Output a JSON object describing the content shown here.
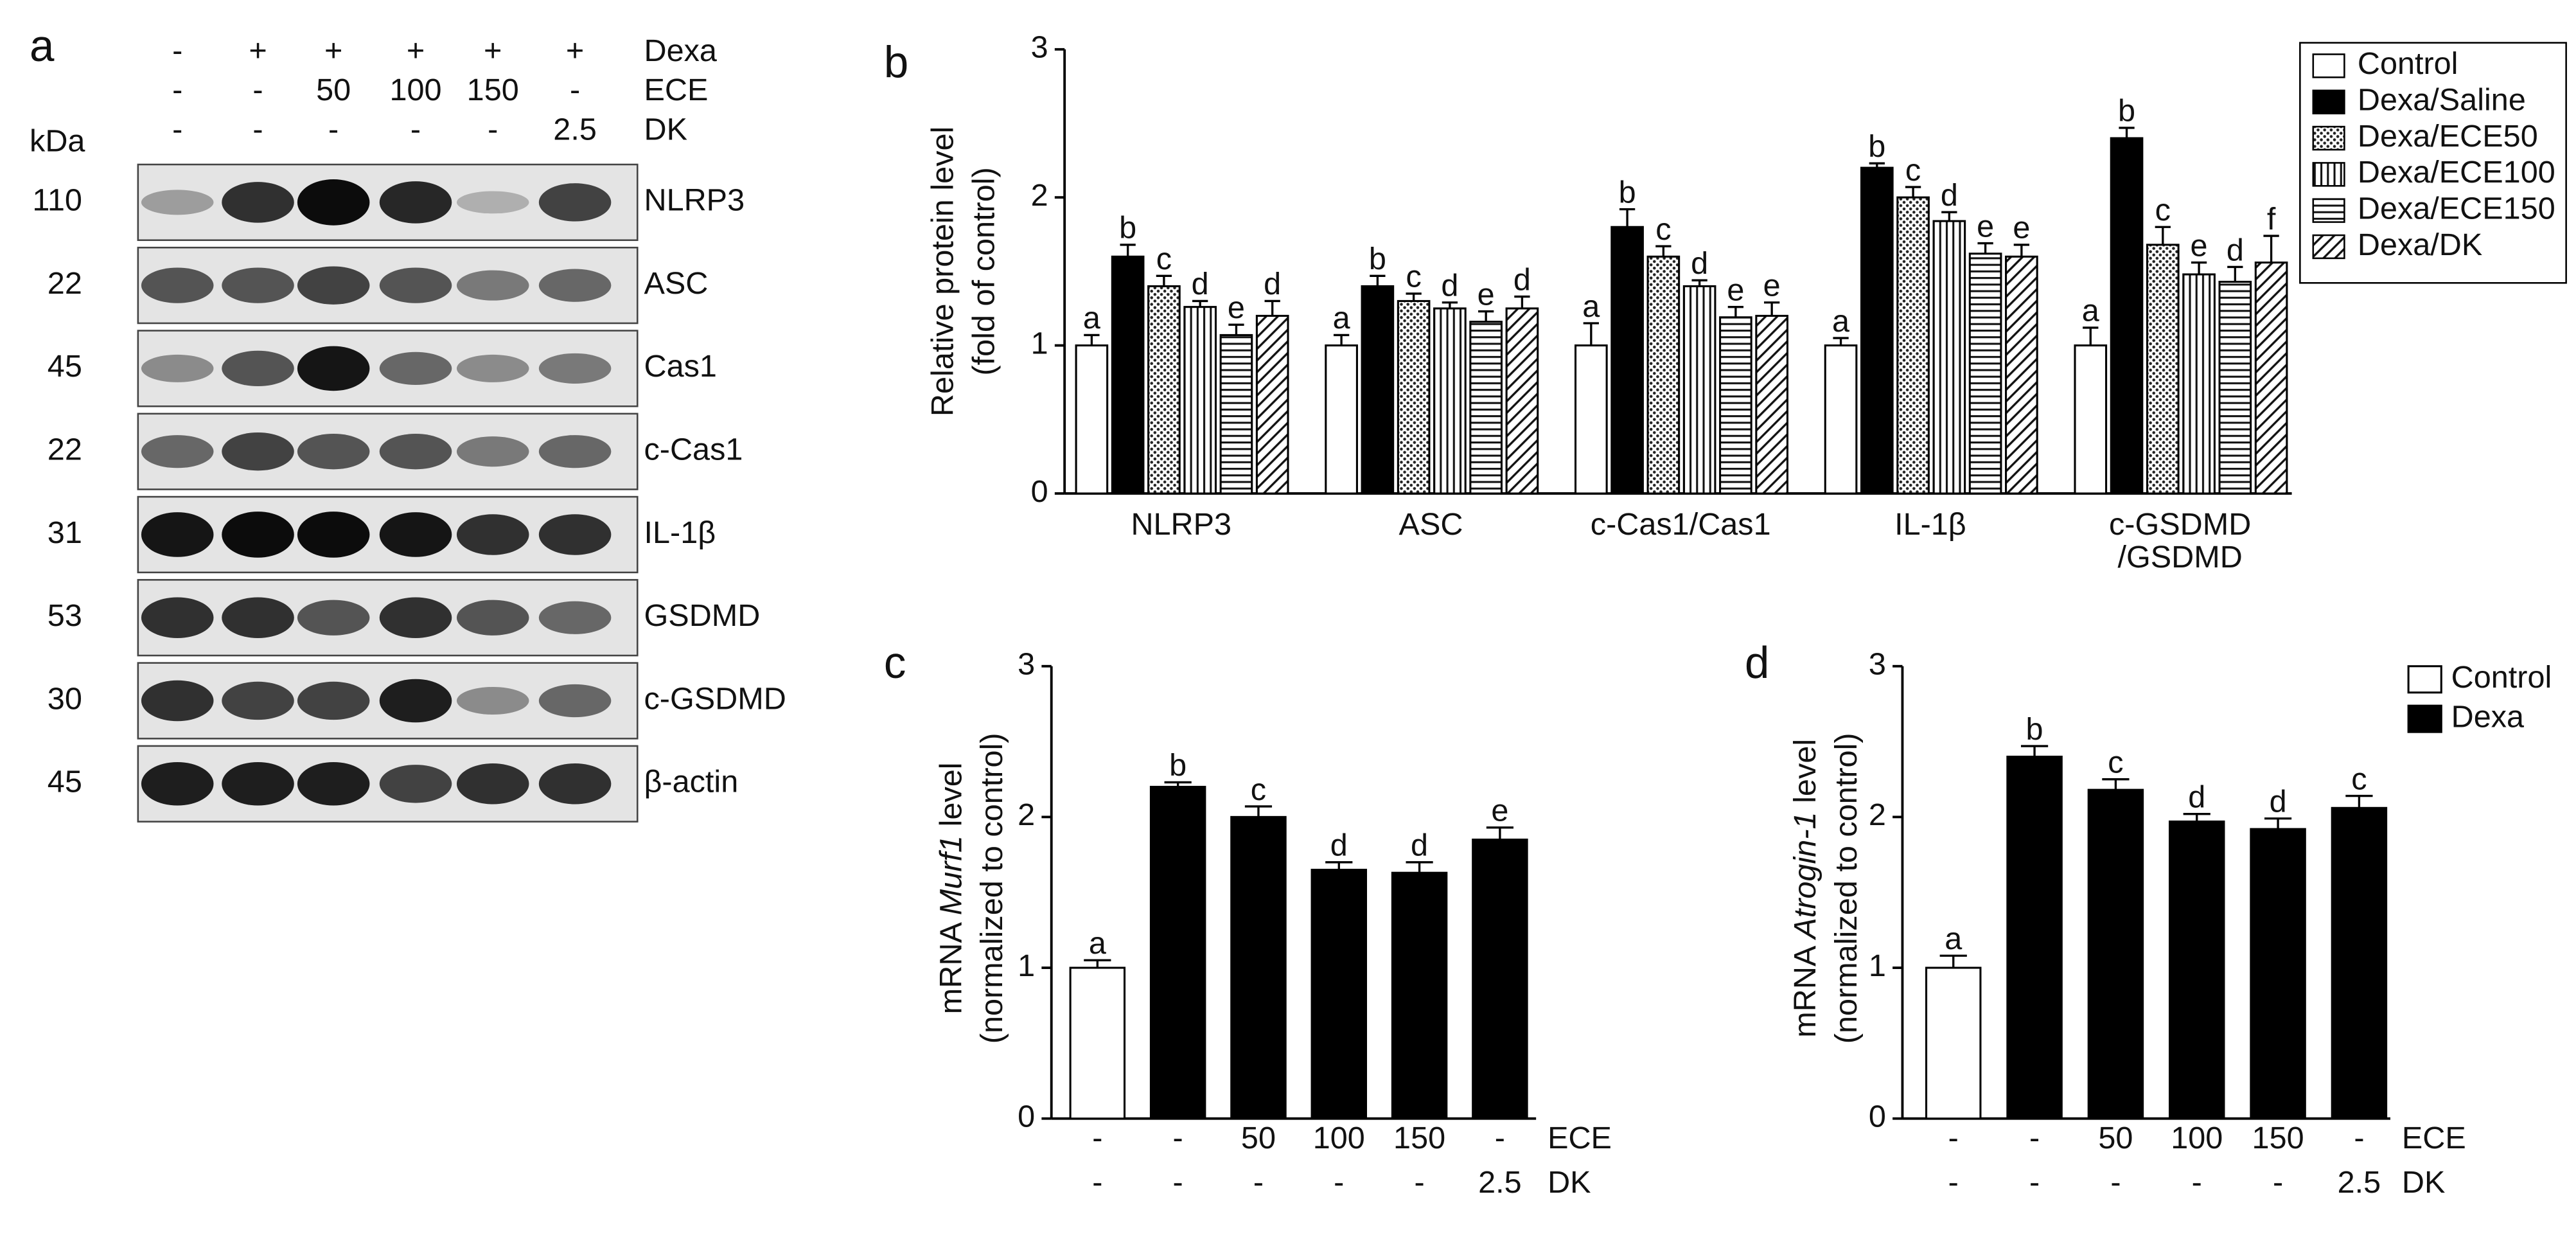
{
  "blot": {
    "panel": "a",
    "kda_label": "kDa",
    "treatments": [
      {
        "name": "Dexa",
        "values": [
          "-",
          "+",
          "+",
          "+",
          "+",
          "+"
        ]
      },
      {
        "name": "ECE",
        "values": [
          "-",
          "-",
          "50",
          "100",
          "150",
          "-"
        ]
      },
      {
        "name": "DK",
        "values": [
          "-",
          "-",
          "-",
          "-",
          "-",
          "2.5"
        ]
      }
    ],
    "bands": [
      {
        "name": "NLRP3",
        "kda": "110"
      },
      {
        "name": "ASC",
        "kda": "22"
      },
      {
        "name": "Cas1",
        "kda": "45"
      },
      {
        "name": "c-Cas1",
        "kda": "22"
      },
      {
        "name": "IL-1β",
        "kda": "31"
      },
      {
        "name": "GSDMD",
        "kda": "53"
      },
      {
        "name": "c-GSDMD",
        "kda": "30"
      },
      {
        "name": "β-actin",
        "kda": "45"
      }
    ]
  },
  "chart_data": [
    {
      "type": "bar",
      "panel": "b",
      "ylabel": "Relative protein level",
      "ylabel2": "(fold of control)",
      "categories": [
        "NLRP3",
        "ASC",
        "c-Cas1/Cas1",
        "IL-1β",
        "c-GSDMD\n/GSDMD"
      ],
      "ylim": [
        0,
        3
      ],
      "yticks": [
        0,
        1,
        2,
        3
      ],
      "legend": "top-right",
      "series": [
        {
          "name": "Control",
          "color": "#ffffff",
          "pattern": "none",
          "values": [
            1.0,
            1.0,
            1.0,
            1.0,
            1.0
          ],
          "errors": [
            0.07,
            0.07,
            0.15,
            0.05,
            0.12
          ],
          "labels": [
            "a",
            "a",
            "a",
            "a",
            "a"
          ]
        },
        {
          "name": "Dexa/Saline",
          "color": "#000000",
          "pattern": "none",
          "values": [
            1.6,
            1.4,
            1.8,
            2.2,
            2.4
          ],
          "errors": [
            0.08,
            0.07,
            0.12,
            0.03,
            0.07
          ],
          "labels": [
            "b",
            "b",
            "b",
            "b",
            "b"
          ]
        },
        {
          "name": "Dexa/ECE50",
          "color": "#ffffff",
          "pattern": "dots",
          "values": [
            1.4,
            1.3,
            1.6,
            2.0,
            1.68
          ],
          "errors": [
            0.07,
            0.05,
            0.07,
            0.07,
            0.12
          ],
          "labels": [
            "c",
            "c",
            "c",
            "c",
            "c"
          ]
        },
        {
          "name": "Dexa/ECE100",
          "color": "#ffffff",
          "pattern": "vertical",
          "values": [
            1.26,
            1.25,
            1.4,
            1.84,
            1.48
          ],
          "errors": [
            0.04,
            0.04,
            0.04,
            0.06,
            0.08
          ],
          "labels": [
            "d",
            "d",
            "d",
            "d",
            "e"
          ]
        },
        {
          "name": "Dexa/ECE150",
          "color": "#ffffff",
          "pattern": "horizontal",
          "values": [
            1.07,
            1.16,
            1.19,
            1.62,
            1.43
          ],
          "errors": [
            0.07,
            0.07,
            0.07,
            0.07,
            0.1
          ],
          "labels": [
            "e",
            "e",
            "e",
            "e",
            "d"
          ]
        },
        {
          "name": "Dexa/DK",
          "color": "#ffffff",
          "pattern": "diagonal",
          "values": [
            1.2,
            1.25,
            1.2,
            1.6,
            1.56
          ],
          "errors": [
            0.1,
            0.08,
            0.09,
            0.08,
            0.18
          ],
          "labels": [
            "d",
            "d",
            "e",
            "e",
            "f"
          ]
        }
      ]
    },
    {
      "type": "bar",
      "panel": "c",
      "ylabel_parts": [
        "mRNA ",
        "Murf1",
        " level"
      ],
      "ylabel2": "(normalized to control)",
      "ylim": [
        0,
        3
      ],
      "yticks": [
        0,
        1,
        2,
        3
      ],
      "values": [
        1.0,
        2.2,
        2.0,
        1.65,
        1.63,
        1.85
      ],
      "errors": [
        0.05,
        0.03,
        0.07,
        0.05,
        0.07,
        0.08
      ],
      "labels": [
        "a",
        "b",
        "c",
        "d",
        "d",
        "e"
      ],
      "colors": [
        "#ffffff",
        "#000000",
        "#000000",
        "#000000",
        "#000000",
        "#000000"
      ],
      "rows": [
        {
          "name": "ECE",
          "values": [
            "-",
            "-",
            "50",
            "100",
            "150",
            "-"
          ]
        },
        {
          "name": "DK",
          "values": [
            "-",
            "-",
            "-",
            "-",
            "-",
            "2.5"
          ]
        }
      ]
    },
    {
      "type": "bar",
      "panel": "d",
      "ylabel_parts": [
        "mRNA ",
        "Atrogin-1",
        " level"
      ],
      "ylabel2": "(normalized to control)",
      "ylim": [
        0,
        3
      ],
      "yticks": [
        0,
        1,
        2,
        3
      ],
      "values": [
        1.0,
        2.4,
        2.18,
        1.97,
        1.92,
        2.06
      ],
      "errors": [
        0.08,
        0.07,
        0.07,
        0.05,
        0.07,
        0.08
      ],
      "labels": [
        "a",
        "b",
        "c",
        "d",
        "d",
        "c"
      ],
      "colors": [
        "#ffffff",
        "#000000",
        "#000000",
        "#000000",
        "#000000",
        "#000000"
      ],
      "legend_entries": [
        {
          "name": "Control",
          "color": "#ffffff"
        },
        {
          "name": "Dexa",
          "color": "#000000"
        }
      ],
      "rows": [
        {
          "name": "ECE",
          "values": [
            "-",
            "-",
            "50",
            "100",
            "150",
            "-"
          ]
        },
        {
          "name": "DK",
          "values": [
            "-",
            "-",
            "-",
            "-",
            "-",
            "2.5"
          ]
        }
      ]
    }
  ]
}
